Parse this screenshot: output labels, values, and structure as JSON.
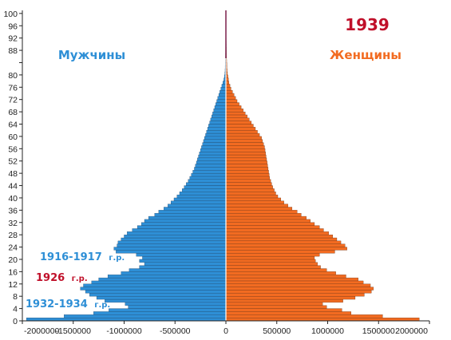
{
  "chart_data": {
    "type": "bar",
    "orientation": "horizontal-pyramid",
    "title": "1939",
    "series": [
      {
        "name": "Мужчины",
        "color": "#2E8FD6",
        "values": [
          -1960000,
          -1590000,
          -1300000,
          -1150000,
          -960000,
          -990000,
          -1190000,
          -1270000,
          -1340000,
          -1380000,
          -1430000,
          -1400000,
          -1320000,
          -1250000,
          -1160000,
          -1030000,
          -950000,
          -850000,
          -800000,
          -850000,
          -820000,
          -880000,
          -1080000,
          -1100000,
          -1070000,
          -1060000,
          -1030000,
          -1000000,
          -970000,
          -920000,
          -870000,
          -830000,
          -800000,
          -760000,
          -700000,
          -660000,
          -610000,
          -570000,
          -540000,
          -510000,
          -480000,
          -455000,
          -430000,
          -410000,
          -390000,
          -370000,
          -355000,
          -340000,
          -325000,
          -310000,
          -300000,
          -290000,
          -280000,
          -270000,
          -260000,
          -250000,
          -240000,
          -230000,
          -220000,
          -210000,
          -200000,
          -190000,
          -180000,
          -170000,
          -160000,
          -150000,
          -140000,
          -130000,
          -120000,
          -110000,
          -100000,
          -90000,
          -80000,
          -70000,
          -60000,
          -50000,
          -40000,
          -30000,
          -20000,
          -15000,
          -10000,
          -8000,
          -7000,
          -6000,
          -5000,
          -4000,
          -3500,
          -3000,
          -2500,
          -2000,
          -1800,
          -1500,
          -1200,
          -1000,
          -800,
          -600,
          -500,
          -400,
          -300,
          -200,
          -100
        ]
      },
      {
        "name": "Женщины",
        "color": "#F26B21",
        "values": [
          1900000,
          1540000,
          1230000,
          1140000,
          990000,
          950000,
          1150000,
          1270000,
          1360000,
          1430000,
          1450000,
          1420000,
          1350000,
          1300000,
          1180000,
          1080000,
          990000,
          930000,
          900000,
          880000,
          870000,
          920000,
          1070000,
          1190000,
          1170000,
          1130000,
          1090000,
          1050000,
          1010000,
          960000,
          920000,
          870000,
          830000,
          790000,
          740000,
          700000,
          650000,
          610000,
          570000,
          540000,
          510000,
          490000,
          475000,
          460000,
          450000,
          440000,
          430000,
          425000,
          420000,
          415000,
          410000,
          405000,
          400000,
          395000,
          390000,
          385000,
          380000,
          370000,
          360000,
          350000,
          330000,
          310000,
          290000,
          270000,
          250000,
          230000,
          210000,
          190000,
          170000,
          150000,
          130000,
          110000,
          95000,
          80000,
          65000,
          50000,
          40000,
          30000,
          25000,
          20000,
          15000,
          12000,
          10000,
          9000,
          8000,
          7000,
          6000,
          5000,
          4500,
          4000,
          3500,
          3000,
          2500,
          2000,
          1500,
          1200,
          1000,
          800,
          600,
          400,
          200
        ]
      }
    ],
    "y_ticks": [
      "0",
      "4",
      "8",
      "12",
      "16",
      "20",
      "24",
      "28",
      "32",
      "36",
      "40",
      "44",
      "48",
      "52",
      "56",
      "60",
      "64",
      "68",
      "72",
      "76",
      "80",
      "",
      "88",
      "92",
      "96",
      "100"
    ],
    "x_ticks": [
      "-2000000",
      "-1500000",
      "-1000000",
      "-500000",
      "0",
      "500000",
      "1000000",
      "1500000",
      "2000000"
    ],
    "xlim": [
      -2000000,
      2000000
    ],
    "ylim": [
      0,
      100
    ],
    "labels": {
      "men": "Мужчины",
      "women": "Женщины",
      "year": "1939"
    },
    "annotations": [
      {
        "main": "1916-1917",
        "suffix": "г.р.",
        "color": "#2E8FD6"
      },
      {
        "main": "1926",
        "suffix": "г.р.",
        "color": "#C0102A"
      },
      {
        "main": "1932-1934",
        "suffix": "г.р.",
        "color": "#2E8FD6"
      }
    ],
    "colors": {
      "men": "#2E8FD6",
      "women": "#F26B21",
      "year": "#C0102A",
      "axis": "#7A1F4A"
    }
  }
}
